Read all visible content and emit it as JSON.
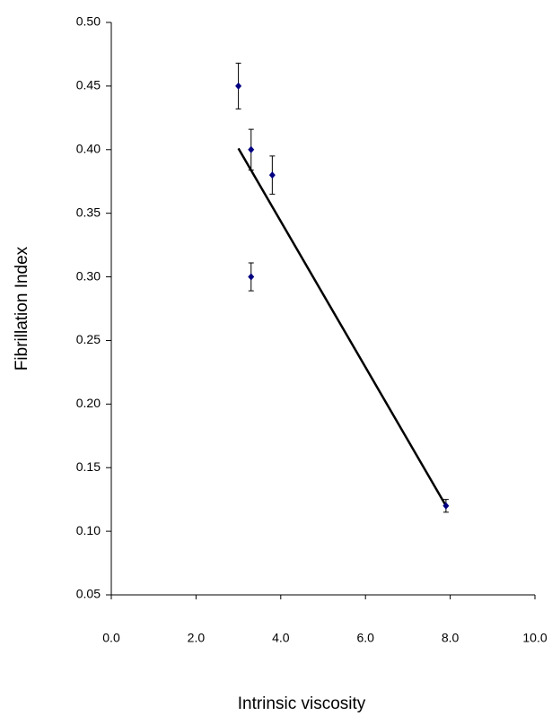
{
  "chart_data": {
    "type": "scatter",
    "x_label": "Intrinsic viscosity",
    "y_label": "Fibrillation Index",
    "xlim": [
      0,
      10
    ],
    "ylim": [
      0.05,
      0.5
    ],
    "xticks": [
      {
        "value": 0,
        "label": "0.0"
      },
      {
        "value": 2,
        "label": "2.0"
      },
      {
        "value": 4,
        "label": "4.0"
      },
      {
        "value": 6,
        "label": "6.0"
      },
      {
        "value": 8,
        "label": "8.0"
      },
      {
        "value": 10,
        "label": "10.0"
      }
    ],
    "yticks": [
      0.05,
      {
        "value": 0.1,
        "label": "0.10"
      },
      0.15,
      {
        "value": 0.2,
        "label": "0.20"
      },
      0.25,
      {
        "value": 0.3,
        "label": "0.30"
      },
      0.35,
      {
        "value": 0.4,
        "label": "0.40"
      },
      0.45,
      {
        "value": 0.5,
        "label": "0.50"
      }
    ],
    "series": [
      {
        "color": "#000080",
        "x": [
          3.0,
          3.3,
          3.8,
          3.3,
          7.9
        ],
        "values": [
          0.45,
          0.4,
          0.38,
          0.3,
          0.12
        ],
        "errors": [
          0.018,
          0.016,
          0.015,
          0.011,
          0.005
        ]
      }
    ],
    "trendline": {
      "color": "#000000",
      "x": [
        3.0,
        7.9
      ],
      "values": [
        0.401,
        0.12
      ]
    }
  }
}
